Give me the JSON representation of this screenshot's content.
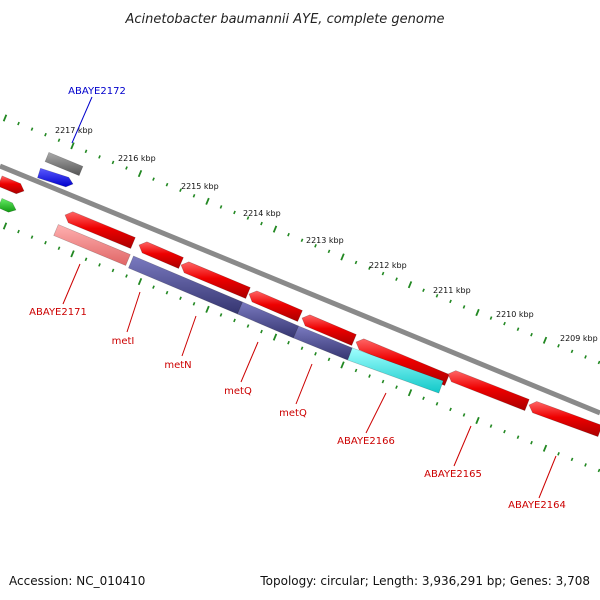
{
  "title": "Acinetobacter baumannii AYE, complete genome",
  "footer": {
    "accession": "Accession: NC_010410",
    "summary": "Topology: circular; Length: 3,936,291 bp; Genes: 3,708"
  },
  "ruler_labels": [
    "2217 kbp",
    "2216 kbp",
    "2215 kbp",
    "2214 kbp",
    "2213 kbp",
    "2212 kbp",
    "2211 kbp",
    "2210 kbp",
    "2209 kbp"
  ],
  "gene_labels": [
    "ABAYE2172",
    "ABAYE2171",
    "metI",
    "metN",
    "metQ",
    "metQ",
    "ABAYE2166",
    "ABAYE2165",
    "ABAYE2164"
  ],
  "colors": {
    "backbone": "#888888",
    "ruler": "#228822",
    "forward_cds": "#ee1111",
    "reverse_cds": "#ee1111",
    "highlight_light": "#f08080",
    "operon": "#4a4a8c",
    "cyan_gene": "#22e0e0",
    "label_red": "#cc0000",
    "label_blue": "#0000cc"
  }
}
